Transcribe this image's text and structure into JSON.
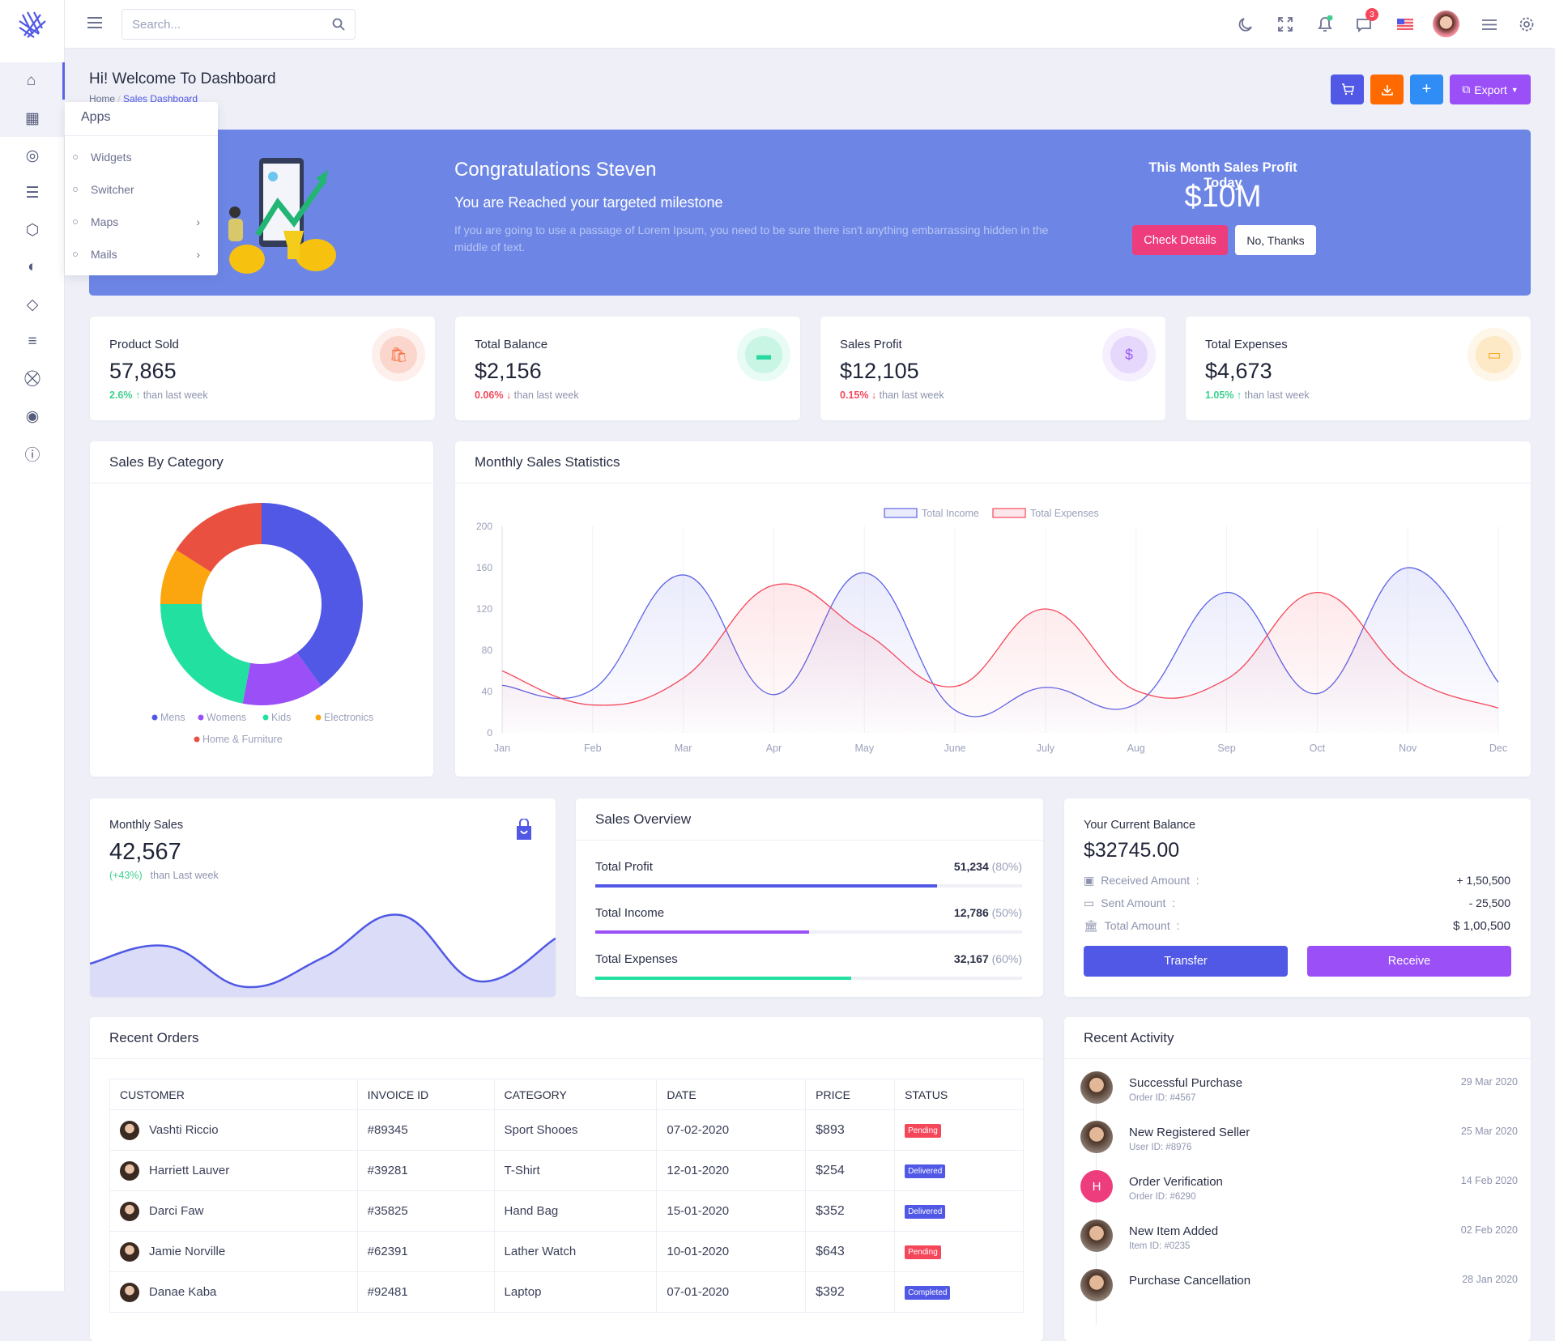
{
  "colors": {
    "primary": "#5058e5",
    "orange": "#ff6a00",
    "blue": "#2f8df5",
    "purple": "#9b4ff7",
    "banner": "#6d86e6",
    "pink": "#ee3d7d",
    "green": "#2ee0a5",
    "red": "#f5475a"
  },
  "topbar": {
    "search_placeholder": "Search...",
    "message_count": "3"
  },
  "sidebar": {
    "icons": [
      "home-icon",
      "apps-icon",
      "compass-icon",
      "database-icon",
      "box-icon",
      "palette-icon",
      "layers-icon",
      "playlist-add-icon",
      "cart-icon",
      "target-icon",
      "alert-circle-icon"
    ]
  },
  "apps_menu": {
    "title": "Apps",
    "items": [
      {
        "label": "Widgets",
        "sub": false
      },
      {
        "label": "Switcher",
        "sub": false
      },
      {
        "label": "Maps",
        "sub": true
      },
      {
        "label": "Mails",
        "sub": true
      }
    ]
  },
  "page": {
    "title": "Hi! Welcome To Dashboard",
    "breadcrumb": [
      "Home",
      "Sales Dashboard"
    ],
    "export_label": "Export"
  },
  "banner": {
    "title": "Congratulations Steven",
    "subtitle": "You are Reached your targeted milestone",
    "text": "If you are going to use a passage of Lorem Ipsum, you need to be sure there isn't anything embarrassing hidden in the middle of text.",
    "profit_label": "This Month Sales Profit Today",
    "profit_value": "$10M",
    "check_label": "Check Details",
    "no_label": "No, Thanks"
  },
  "stats": [
    {
      "title": "Product Sold",
      "value": "57,865",
      "change": "2.6%",
      "dir": "up",
      "sub": "than last week",
      "color": "#f86a3a",
      "bg": "#fbd6cd"
    },
    {
      "title": "Total Balance",
      "value": "$2,156",
      "change": "0.06%",
      "dir": "down",
      "sub": "than last week",
      "color": "#27d9a1",
      "bg": "#c9f5e5"
    },
    {
      "title": "Sales Profit",
      "value": "$12,105",
      "change": "0.15%",
      "dir": "down",
      "sub": "than last week",
      "color": "#9b5cf6",
      "bg": "#e6d8fd"
    },
    {
      "title": "Total Expenses",
      "value": "$4,673",
      "change": "1.05%",
      "dir": "up",
      "sub": "than last week",
      "color": "#f6a723",
      "bg": "#fde9c6"
    }
  ],
  "sales_by_category": {
    "title": "Sales By Category"
  },
  "monthly_stats": {
    "title": "Monthly Sales Statistics"
  },
  "chart_data": [
    {
      "type": "pie",
      "title": "Sales By Category",
      "categories": [
        "Mens",
        "Womens",
        "Kids",
        "Electronics",
        "Home & Furniture"
      ],
      "values": [
        40,
        13,
        22,
        9,
        16
      ],
      "colors": [
        "#5058e5",
        "#9b4ff7",
        "#22e0a0",
        "#fba50f",
        "#ea5040"
      ]
    },
    {
      "type": "area",
      "title": "Monthly Sales Statistics",
      "x": [
        "Jan",
        "Feb",
        "Mar",
        "Apr",
        "May",
        "June",
        "July",
        "Aug",
        "Sep",
        "Oct",
        "Nov",
        "Dec"
      ],
      "ylim": [
        0,
        200
      ],
      "yticks": [
        0,
        40,
        80,
        120,
        160,
        200
      ],
      "legend": "top-center",
      "series": [
        {
          "name": "Total Income",
          "color": "#5c63e6",
          "values": [
            46,
            42,
            153,
            37,
            155,
            22,
            44,
            28,
            136,
            38,
            160,
            49
          ]
        },
        {
          "name": "Total Expenses",
          "color": "#f5475a",
          "values": [
            60,
            27,
            53,
            143,
            97,
            45,
            120,
            41,
            52,
            136,
            55,
            24
          ]
        }
      ]
    },
    {
      "type": "area",
      "title": "Monthly Sales",
      "values": [
        30,
        48,
        6,
        36,
        80,
        12,
        56
      ],
      "color": "#5058e5"
    }
  ],
  "monthly_sales": {
    "title": "Monthly Sales",
    "value": "42,567",
    "change": "(+43%)",
    "sub": "than Last week"
  },
  "sales_overview": {
    "title": "Sales Overview",
    "rows": [
      {
        "label": "Total Profit",
        "value": "51,234",
        "pct": "(80%)",
        "fill": 80,
        "color": "#5058e5"
      },
      {
        "label": "Total Income",
        "value": "12,786",
        "pct": "(50%)",
        "fill": 50,
        "color": "#9b4ff7"
      },
      {
        "label": "Total Expenses",
        "value": "32,167",
        "pct": "(60%)",
        "fill": 60,
        "color": "#22e0a0"
      }
    ]
  },
  "balance": {
    "title": "Your Current Balance",
    "value": "$32745.00",
    "rows": [
      {
        "label": "Received Amount  :",
        "value": "+ 1,50,500"
      },
      {
        "label": "Sent Amount  :",
        "value": "- 25,500"
      },
      {
        "label": "Total Amount  :",
        "value": "$ 1,00,500"
      }
    ],
    "transfer": "Transfer",
    "receive": "Receive"
  },
  "orders": {
    "title": "Recent Orders",
    "columns": [
      "CUSTOMER",
      "INVOICE ID",
      "CATEGORY",
      "DATE",
      "PRICE",
      "STATUS"
    ],
    "rows": [
      {
        "customer": "Vashti Riccio",
        "invoice": "#89345",
        "category": "Sport Shooes",
        "date": "07-02-2020",
        "price": "$893",
        "status": "Pending",
        "color": "#f5475a"
      },
      {
        "customer": "Harriett Lauver",
        "invoice": "#39281",
        "category": "T-Shirt",
        "date": "12-01-2020",
        "price": "$254",
        "status": "Delivered",
        "color": "#5058e5"
      },
      {
        "customer": "Darci Faw",
        "invoice": "#35825",
        "category": "Hand Bag",
        "date": "15-01-2020",
        "price": "$352",
        "status": "Delivered",
        "color": "#5058e5"
      },
      {
        "customer": "Jamie Norville",
        "invoice": "#62391",
        "category": "Lather Watch",
        "date": "10-01-2020",
        "price": "$643",
        "status": "Pending",
        "color": "#f5475a"
      },
      {
        "customer": "Danae Kaba",
        "invoice": "#92481",
        "category": "Laptop",
        "date": "07-01-2020",
        "price": "$392",
        "status": "Completed",
        "color": "#5058e5"
      }
    ]
  },
  "activity": {
    "title": "Recent Activity",
    "items": [
      {
        "title": "Successful Purchase",
        "sub": "Order ID: #4567",
        "date": "29 Mar 2020"
      },
      {
        "title": "New Registered Seller",
        "sub": "User ID: #8976",
        "date": "25 Mar 2020"
      },
      {
        "title": "Order Verification",
        "sub": "Order ID: #6290",
        "date": "14 Feb 2020",
        "initial": "H"
      },
      {
        "title": "New Item Added",
        "sub": "Item ID: #0235",
        "date": "02 Feb 2020"
      },
      {
        "title": "Purchase Cancellation",
        "sub": "",
        "date": "28 Jan 2020"
      }
    ]
  }
}
